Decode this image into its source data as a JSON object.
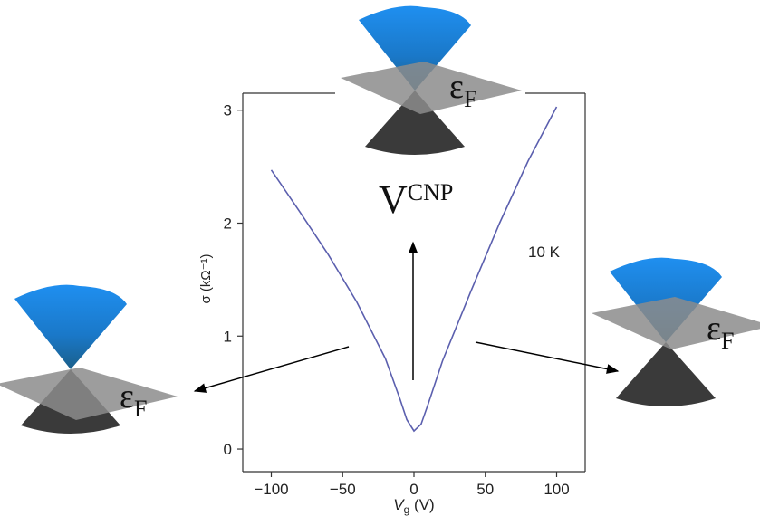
{
  "chart_data": {
    "type": "line",
    "y_label": "σ (kΩ⁻¹)",
    "x_label": {
      "text": "V",
      "sub": "g",
      "rest": " (V)"
    },
    "x": [
      -100,
      -80,
      -60,
      -40,
      -20,
      -10,
      -5,
      0,
      5,
      10,
      20,
      40,
      60,
      80,
      100
    ],
    "values": [
      2.47,
      2.1,
      1.72,
      1.3,
      0.8,
      0.45,
      0.26,
      0.16,
      0.22,
      0.4,
      0.78,
      1.4,
      2.0,
      2.55,
      3.03
    ],
    "color": "#5b5fae",
    "xlim": [
      -120,
      120
    ],
    "xticks": [
      -100,
      -50,
      0,
      50,
      100
    ],
    "ylim": [
      -0.2,
      3.15
    ],
    "yticks": [
      0,
      1,
      2,
      3
    ],
    "annotations": [
      "10 K"
    ],
    "cnp_label": {
      "text": "V",
      "sup": "CNP"
    },
    "cones": [
      {
        "label": {
          "text": "ε",
          "sub": "F"
        }
      },
      {
        "label": {
          "text": "ε",
          "sub": "F"
        }
      },
      {
        "label": {
          "text": "ε",
          "sub": "F"
        }
      }
    ]
  }
}
